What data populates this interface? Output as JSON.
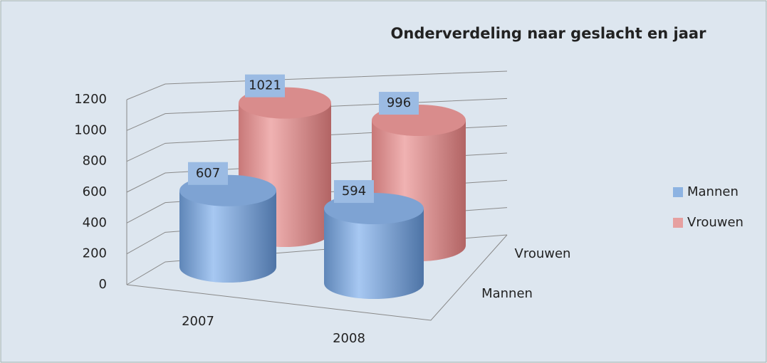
{
  "chart_data": {
    "type": "bar3d_cylinder",
    "title": "Onderverdeling naar geslacht en jaar",
    "categories": [
      "2007",
      "2008"
    ],
    "series": [
      {
        "name": "Mannen",
        "color": "#8db3e2",
        "values": [
          607,
          594
        ]
      },
      {
        "name": "Vrouwen",
        "color": "#e6a0a0",
        "values": [
          1021,
          996
        ]
      }
    ],
    "ylim": [
      0,
      1200
    ],
    "yticks": [
      0,
      200,
      400,
      600,
      800,
      1000,
      1200
    ],
    "grid": true,
    "legend": "right"
  }
}
